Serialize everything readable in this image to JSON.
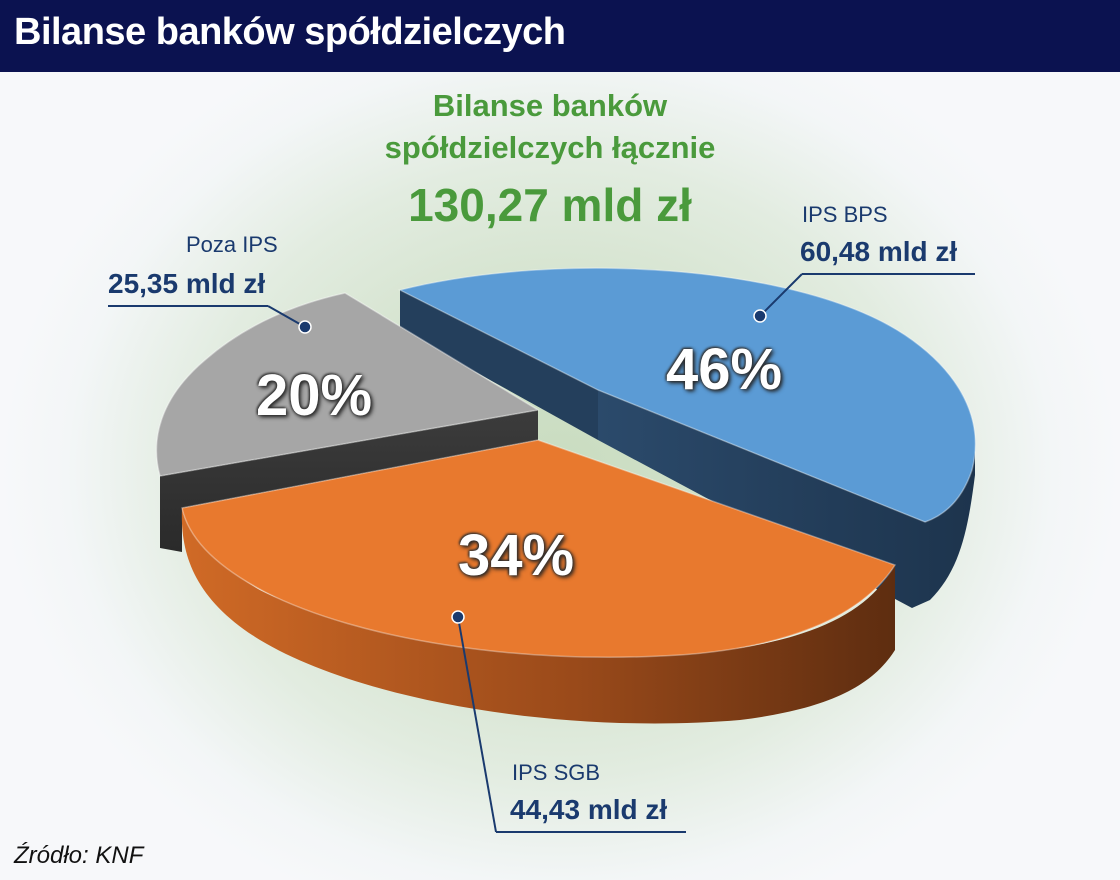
{
  "header": {
    "title": "Bilanse banków spółdzielczych"
  },
  "source": "Źródło: KNF",
  "chart_data": {
    "type": "pie",
    "title_lines": [
      "Bilanse banków",
      "spółdzielczych łącznie"
    ],
    "total_label": "130,27 mld zł",
    "slices": [
      {
        "name": "IPS BPS",
        "value": 60.48,
        "value_label": "60,48 mld zł",
        "percent": 46,
        "percent_label": "46%",
        "color": "#5b9bd5",
        "side_color": "#1f3a56"
      },
      {
        "name": "IPS SGB",
        "value": 44.43,
        "value_label": "44,43 mld zł",
        "percent": 34,
        "percent_label": "34%",
        "color": "#e8792e",
        "side_color": "#7a3c14"
      },
      {
        "name": "Poza IPS",
        "value": 25.35,
        "value_label": "25,35 mld zł",
        "percent": 20,
        "percent_label": "20%",
        "color": "#a6a6a6",
        "side_color": "#3a3a3a"
      }
    ]
  }
}
